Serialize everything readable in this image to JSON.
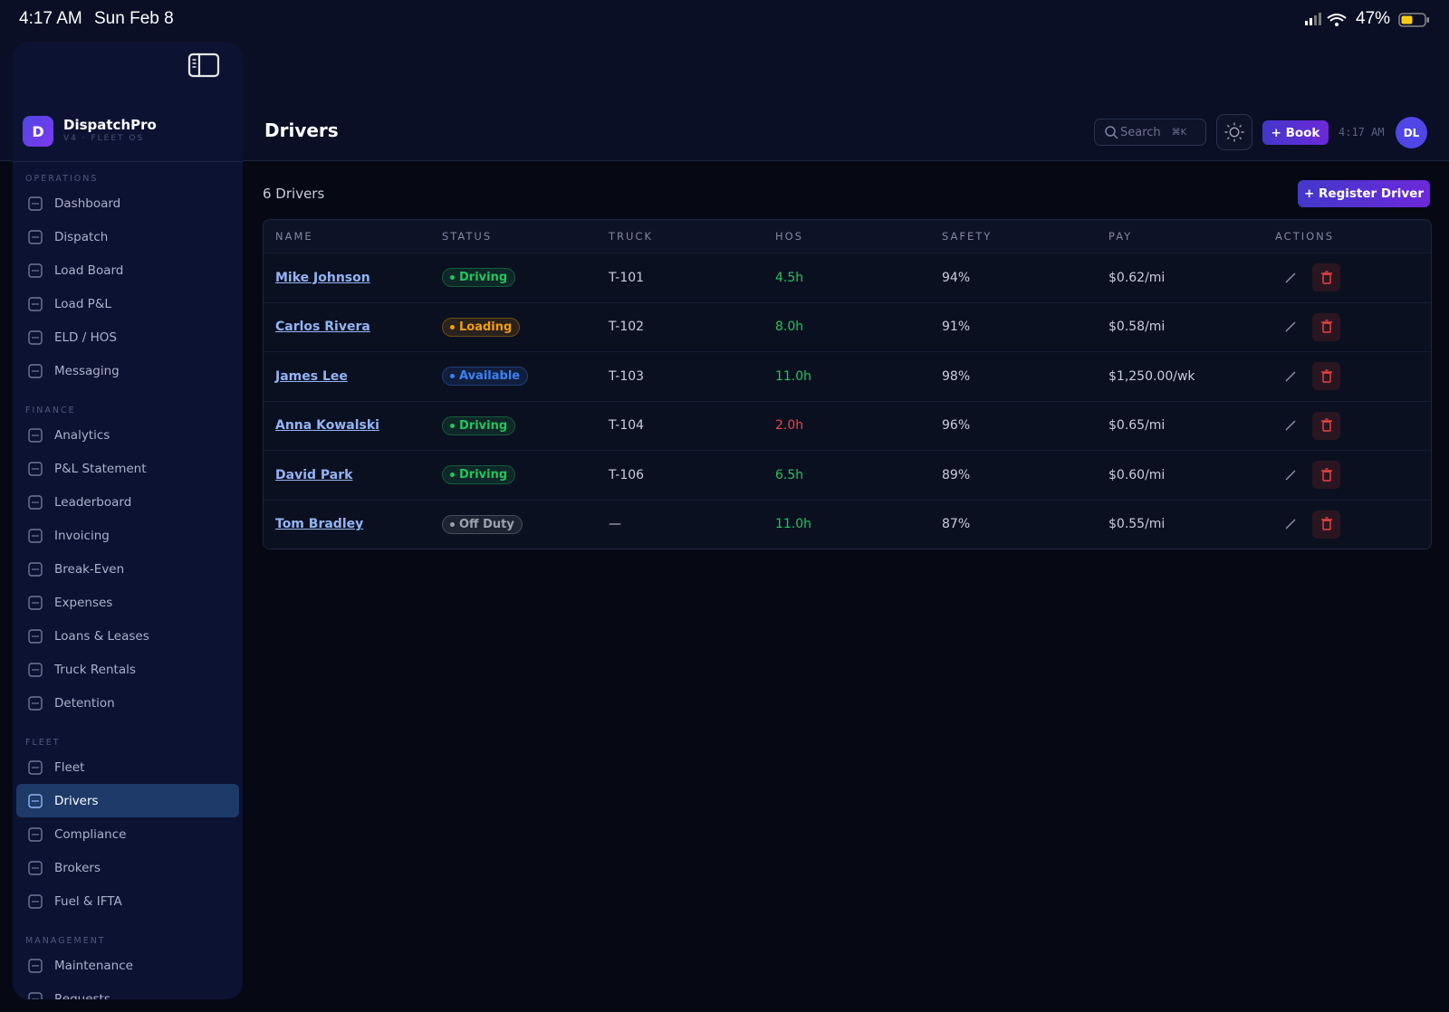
{
  "status_bar": {
    "time": "4:17 AM",
    "date": "Sun Feb 8",
    "battery": "47%"
  },
  "sidebar": {
    "logo": "D",
    "brand": "DispatchPro",
    "version": "V4 · FLEET OS",
    "active": "Drivers",
    "sections": [
      {
        "title": "OPERATIONS",
        "items": [
          "Dashboard",
          "Dispatch",
          "Load Board",
          "Load P&L",
          "ELD / HOS",
          "Messaging"
        ]
      },
      {
        "title": "FINANCE",
        "items": [
          "Analytics",
          "P&L Statement",
          "Leaderboard",
          "Invoicing",
          "Break-Even",
          "Expenses",
          "Loans & Leases",
          "Truck Rentals",
          "Detention"
        ]
      },
      {
        "title": "FLEET",
        "items": [
          "Fleet",
          "Drivers",
          "Compliance",
          "Brokers",
          "Fuel & IFTA"
        ]
      },
      {
        "title": "MANAGEMENT",
        "items": [
          "Maintenance",
          "Requests"
        ]
      }
    ]
  },
  "header": {
    "title": "Drivers",
    "search": "Search",
    "shortcut": "⌘K",
    "book": "+ Book",
    "time": "4:17 AM",
    "avatar": "DL"
  },
  "content": {
    "count": "6 Drivers",
    "register": "+ Register Driver",
    "table": {
      "columns": [
        "NAME",
        "STATUS",
        "TRUCK",
        "HOS",
        "SAFETY",
        "PAY",
        "ACTIONS"
      ],
      "rows": [
        {
          "name": "Mike Johnson",
          "status": "Driving",
          "status_color": "#22c55e",
          "truck": "T-101",
          "hos": "4.5h",
          "hos_color": "#22c55e",
          "safety": "94%",
          "pay": "$0.62/mi"
        },
        {
          "name": "Carlos Rivera",
          "status": "Loading",
          "status_color": "#f59e0b",
          "truck": "T-102",
          "hos": "8.0h",
          "hos_color": "#22c55e",
          "safety": "91%",
          "pay": "$0.58/mi"
        },
        {
          "name": "James Lee",
          "status": "Available",
          "status_color": "#3b82f6",
          "truck": "T-103",
          "hos": "11.0h",
          "hos_color": "#22c55e",
          "safety": "98%",
          "pay": "$1,250.00/wk"
        },
        {
          "name": "Anna Kowalski",
          "status": "Driving",
          "status_color": "#22c55e",
          "truck": "T-104",
          "hos": "2.0h",
          "hos_color": "#ef4444",
          "safety": "96%",
          "pay": "$0.65/mi"
        },
        {
          "name": "David Park",
          "status": "Driving",
          "status_color": "#22c55e",
          "truck": "T-106",
          "hos": "6.5h",
          "hos_color": "#22c55e",
          "safety": "89%",
          "pay": "$0.60/mi"
        },
        {
          "name": "Tom Bradley",
          "status": "Off Duty",
          "status_color": "#9ca3af",
          "truck": "—",
          "hos": "11.0h",
          "hos_color": "#22c55e",
          "safety": "87%",
          "pay": "$0.55/mi"
        }
      ]
    }
  }
}
